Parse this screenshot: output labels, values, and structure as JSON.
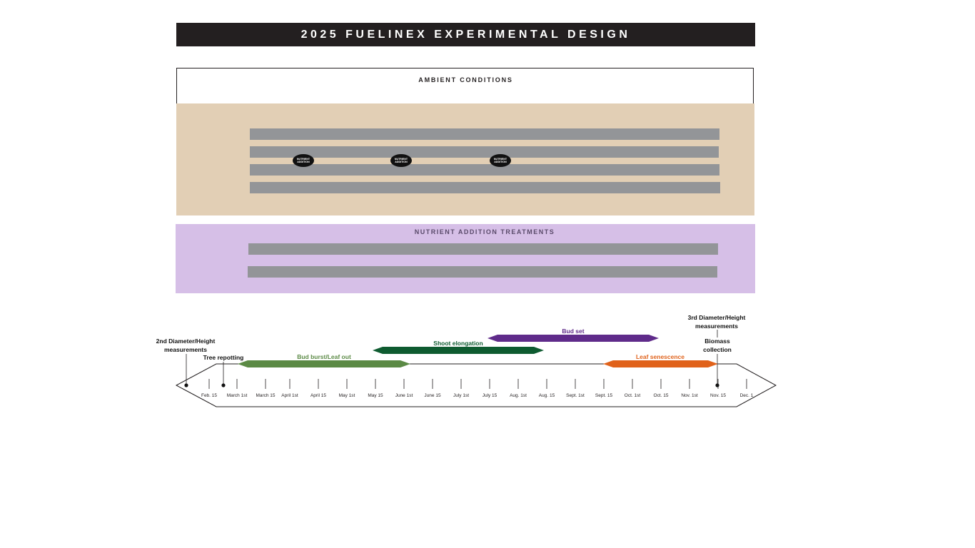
{
  "title": "2025 FUELINEX EXPERIMENTAL DESIGN",
  "ambient": {
    "label": "AMBIENT CONDITIONS",
    "color": "#e2cfb5",
    "row_count": 4
  },
  "nutrient": {
    "label": "NUTRIENT ADDITION TREATMENTS",
    "color": "#d6bfe7",
    "row_count": 2
  },
  "markers": [
    "NUTRIENT\nADDITION",
    "NUTRIENT\nADDITION",
    "NUTRIENT\nADDITION"
  ],
  "timeline": {
    "ticks": [
      "Feb. 15",
      "March 1st",
      "March 15",
      "April 1st",
      "April 15",
      "May 1st",
      "May 15",
      "June 1st",
      "June 15",
      "July 1st",
      "July 15",
      "Aug. 1st",
      "Aug. 15",
      "Sept. 1st",
      "Sept. 15",
      "Oct. 1st",
      "Oct. 15",
      "Nov. 1st",
      "Nov. 15",
      "Dec. 1"
    ],
    "phases": [
      {
        "label": "Bud burst/Leaf out",
        "color": "#5b8a45"
      },
      {
        "label": "Shoot elongation",
        "color": "#0e5b30"
      },
      {
        "label": "Bud set",
        "color": "#5f2b8a"
      },
      {
        "label": "Leaf senescence",
        "color": "#e0621b"
      }
    ],
    "events": [
      {
        "label": "2nd Diameter/Height\nmeasurements"
      },
      {
        "label": "Tree repotting"
      },
      {
        "label": "3rd Diameter/Height\nmeasurements"
      },
      {
        "label": "Biomass\ncollection"
      }
    ]
  }
}
